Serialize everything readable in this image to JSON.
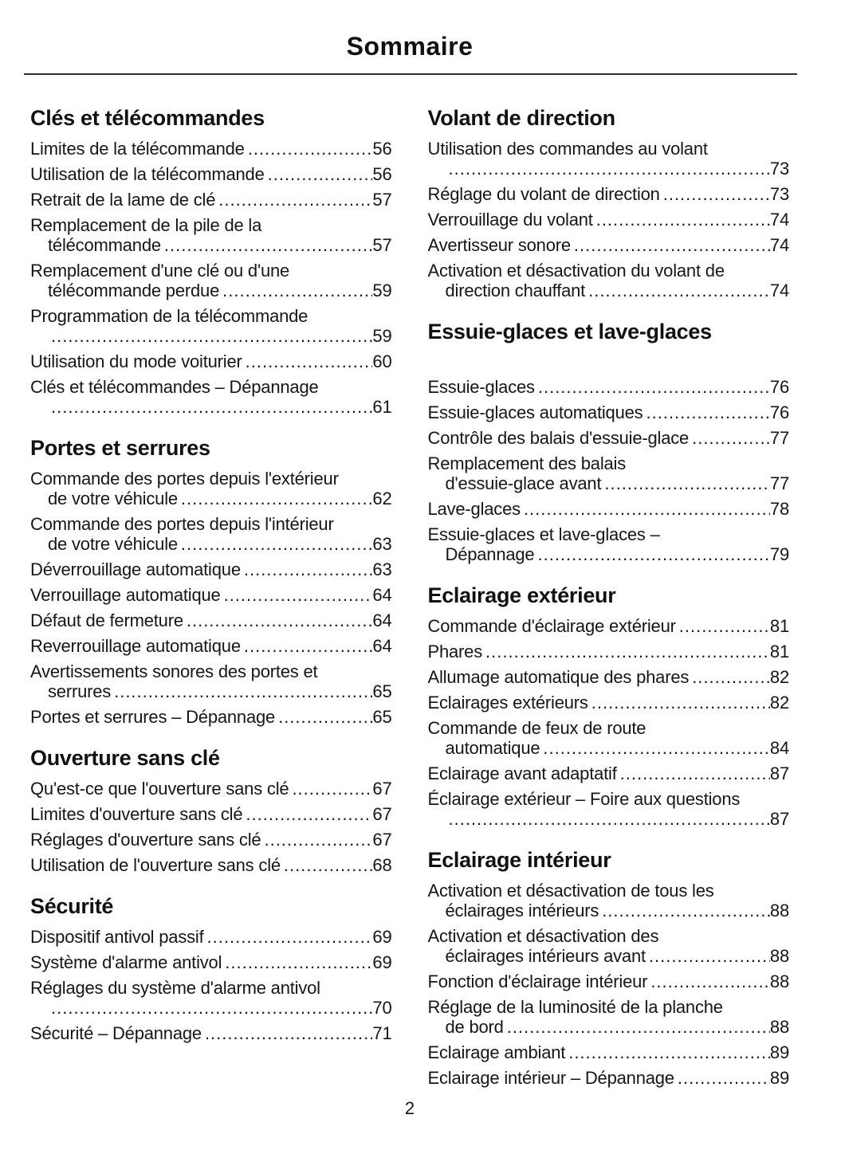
{
  "title": "Sommaire",
  "page_number": "2",
  "text_color": "#161616",
  "rule_color": "#2e2e2e",
  "columns": [
    {
      "sections": [
        {
          "heading": "Clés et télécommandes",
          "entries": [
            {
              "lines": [
                "Limites de la télécommande"
              ],
              "page": "56"
            },
            {
              "lines": [
                "Utilisation de la télécommande"
              ],
              "page": "56"
            },
            {
              "lines": [
                "Retrait de la lame de clé"
              ],
              "page": "57"
            },
            {
              "lines": [
                "Remplacement de la pile de la",
                "télécommande"
              ],
              "page": "57"
            },
            {
              "lines": [
                "Remplacement d'une clé ou d'une",
                "télécommande perdue"
              ],
              "page": "59"
            },
            {
              "lines": [
                "Programmation de la télécommande",
                ""
              ],
              "page": "59"
            },
            {
              "lines": [
                "Utilisation du mode voiturier"
              ],
              "page": "60"
            },
            {
              "lines": [
                "Clés et télécommandes – Dépannage",
                ""
              ],
              "page": "61"
            }
          ]
        },
        {
          "heading": "Portes et serrures",
          "entries": [
            {
              "lines": [
                "Commande des portes depuis l'extérieur",
                "de votre véhicule"
              ],
              "page": "62"
            },
            {
              "lines": [
                "Commande des portes depuis l'intérieur",
                "de votre véhicule"
              ],
              "page": "63"
            },
            {
              "lines": [
                "Déverrouillage automatique"
              ],
              "page": "63"
            },
            {
              "lines": [
                "Verrouillage automatique"
              ],
              "page": "64"
            },
            {
              "lines": [
                "Défaut de fermeture"
              ],
              "page": "64"
            },
            {
              "lines": [
                "Reverrouillage automatique"
              ],
              "page": "64"
            },
            {
              "lines": [
                "Avertissements sonores des portes et",
                "serrures"
              ],
              "page": "65"
            },
            {
              "lines": [
                "Portes et serrures – Dépannage"
              ],
              "page": "65"
            }
          ]
        },
        {
          "heading": "Ouverture sans clé",
          "entries": [
            {
              "lines": [
                "Qu'est-ce que l'ouverture sans clé"
              ],
              "page": "67"
            },
            {
              "lines": [
                "Limites d'ouverture sans clé"
              ],
              "page": "67"
            },
            {
              "lines": [
                "Réglages d'ouverture sans clé"
              ],
              "page": "67"
            },
            {
              "lines": [
                "Utilisation de l'ouverture sans clé"
              ],
              "page": "68"
            }
          ]
        },
        {
          "heading": "Sécurité",
          "entries": [
            {
              "lines": [
                "Dispositif antivol passif"
              ],
              "page": "69"
            },
            {
              "lines": [
                "Système d'alarme antivol"
              ],
              "page": "69"
            },
            {
              "lines": [
                "Réglages du système d'alarme antivol",
                ""
              ],
              "page": "70"
            },
            {
              "lines": [
                "Sécurité – Dépannage"
              ],
              "page": "71"
            }
          ]
        }
      ]
    },
    {
      "sections": [
        {
          "heading": "Volant de direction",
          "entries": [
            {
              "lines": [
                "Utilisation des commandes au volant",
                ""
              ],
              "page": "73"
            },
            {
              "lines": [
                "Réglage du volant de direction"
              ],
              "page": "73"
            },
            {
              "lines": [
                "Verrouillage du volant"
              ],
              "page": "74"
            },
            {
              "lines": [
                "Avertisseur sonore"
              ],
              "page": "74"
            },
            {
              "lines": [
                "Activation et désactivation du volant de",
                "direction chauffant"
              ],
              "page": "74"
            }
          ]
        },
        {
          "heading": "Essuie-glaces et lave-glaces",
          "extra_space_below_heading": true,
          "entries": [
            {
              "lines": [
                "Essuie-glaces"
              ],
              "page": "76"
            },
            {
              "lines": [
                "Essuie-glaces automatiques"
              ],
              "page": "76"
            },
            {
              "lines": [
                "Contrôle des balais d'essuie-glace"
              ],
              "page": "77"
            },
            {
              "lines": [
                "Remplacement des balais",
                "d'essuie-glace avant"
              ],
              "page": "77"
            },
            {
              "lines": [
                "Lave-glaces"
              ],
              "page": "78"
            },
            {
              "lines": [
                "Essuie-glaces et lave-glaces –",
                "Dépannage"
              ],
              "page": "79"
            }
          ]
        },
        {
          "heading": "Eclairage extérieur",
          "entries": [
            {
              "lines": [
                "Commande d'éclairage extérieur"
              ],
              "page": "81"
            },
            {
              "lines": [
                "Phares"
              ],
              "page": "81"
            },
            {
              "lines": [
                "Allumage automatique des phares"
              ],
              "page": "82"
            },
            {
              "lines": [
                "Eclairages extérieurs"
              ],
              "page": "82"
            },
            {
              "lines": [
                "Commande de feux de route",
                "automatique"
              ],
              "page": "84"
            },
            {
              "lines": [
                "Eclairage avant adaptatif"
              ],
              "page": "87"
            },
            {
              "lines": [
                "Éclairage extérieur – Foire aux questions",
                ""
              ],
              "page": "87"
            }
          ]
        },
        {
          "heading": "Eclairage intérieur",
          "entries": [
            {
              "lines": [
                "Activation et désactivation de tous les",
                "éclairages intérieurs"
              ],
              "page": "88"
            },
            {
              "lines": [
                "Activation et désactivation des",
                "éclairages intérieurs avant"
              ],
              "page": "88"
            },
            {
              "lines": [
                "Fonction d'éclairage intérieur"
              ],
              "page": "88"
            },
            {
              "lines": [
                "Réglage de la luminosité de la planche",
                "de bord"
              ],
              "page": "88"
            },
            {
              "lines": [
                "Eclairage ambiant"
              ],
              "page": "89"
            },
            {
              "lines": [
                "Eclairage intérieur – Dépannage"
              ],
              "page": "89"
            }
          ]
        }
      ]
    }
  ]
}
